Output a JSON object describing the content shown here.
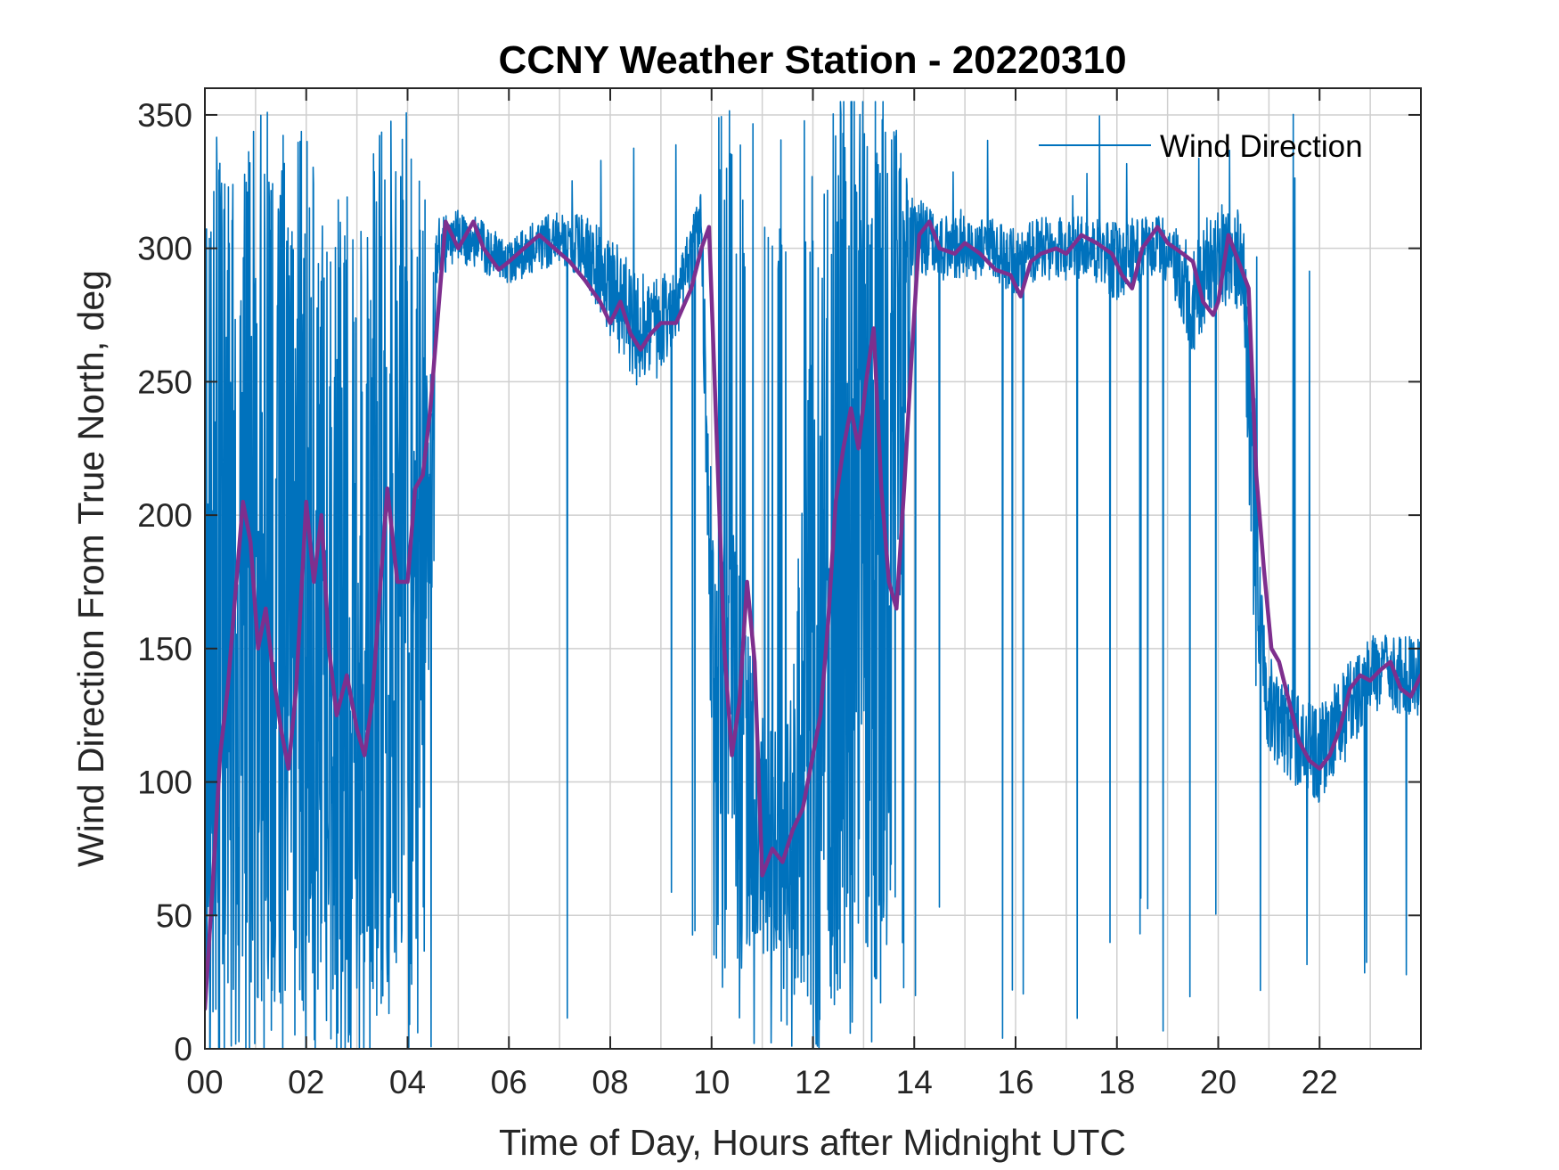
{
  "chart_data": {
    "type": "line",
    "title": "CCNY Weather Station - 20220310",
    "xlabel": "Time of Day, Hours after Midnight UTC",
    "ylabel": "Wind Direction From True North, deg",
    "xlim": [
      0,
      24
    ],
    "ylim": [
      0,
      360
    ],
    "x_ticks": [
      0,
      2,
      4,
      6,
      8,
      10,
      12,
      14,
      16,
      18,
      20,
      22
    ],
    "x_tick_labels": [
      "00",
      "02",
      "04",
      "06",
      "08",
      "10",
      "12",
      "14",
      "16",
      "18",
      "20",
      "22"
    ],
    "x_minor_grid_step": 1,
    "y_ticks": [
      0,
      50,
      100,
      150,
      200,
      250,
      300,
      350
    ],
    "y_tick_labels": [
      "0",
      "50",
      "100",
      "150",
      "200",
      "250",
      "300",
      "350"
    ],
    "grid": true,
    "legend": {
      "position": "top-right",
      "entries": [
        "Wind Direction"
      ]
    },
    "series": [
      {
        "name": "Wind Direction",
        "color": "#0072BD",
        "kind": "raw",
        "envelope_x": [
          0,
          0.5,
          1,
          1.5,
          2,
          2.5,
          3,
          3.5,
          4,
          4.5,
          4.6,
          5,
          5.5,
          6,
          6.5,
          7,
          7.5,
          8,
          8.5,
          9,
          9.5,
          9.8,
          10,
          10.5,
          11,
          11.5,
          12,
          12.5,
          13,
          13.5,
          14,
          14.5,
          15,
          15.5,
          16,
          16.5,
          17,
          17.5,
          18,
          18.5,
          19,
          19.5,
          20,
          20.5,
          20.7,
          21,
          21.5,
          22,
          22.5,
          23,
          23.5,
          24
        ],
        "envelope_center": [
          120,
          160,
          170,
          160,
          170,
          150,
          130,
          180,
          190,
          230,
          300,
          305,
          300,
          295,
          300,
          305,
          300,
          285,
          270,
          270,
          290,
          310,
          150,
          120,
          75,
          80,
          120,
          200,
          240,
          200,
          305,
          300,
          300,
          300,
          295,
          300,
          300,
          300,
          295,
          300,
          300,
          280,
          300,
          295,
          200,
          130,
          115,
          110,
          125,
          140,
          140,
          140
        ],
        "envelope_spread": [
          175,
          175,
          175,
          175,
          175,
          175,
          175,
          170,
          160,
          80,
          12,
          10,
          10,
          8,
          10,
          10,
          12,
          20,
          22,
          18,
          15,
          12,
          60,
          70,
          50,
          45,
          160,
          160,
          160,
          160,
          15,
          12,
          12,
          12,
          12,
          12,
          12,
          12,
          15,
          12,
          12,
          20,
          22,
          18,
          60,
          20,
          18,
          18,
          18,
          15,
          15,
          15
        ],
        "envelope_spike_rate": [
          0.25,
          0.25,
          0.25,
          0.25,
          0.25,
          0.25,
          0.25,
          0.2,
          0.2,
          0.1,
          0.02,
          0.02,
          0.02,
          0.02,
          0.02,
          0.02,
          0.02,
          0.03,
          0.04,
          0.03,
          0.03,
          0.03,
          0.2,
          0.2,
          0.15,
          0.15,
          0.25,
          0.25,
          0.25,
          0.25,
          0.03,
          0.02,
          0.02,
          0.02,
          0.02,
          0.02,
          0.02,
          0.02,
          0.03,
          0.02,
          0.02,
          0.04,
          0.04,
          0.04,
          0.05,
          0.02,
          0.02,
          0.02,
          0.02,
          0.02,
          0.02,
          0.02
        ]
      },
      {
        "name": "",
        "color": "#7E2F8E",
        "kind": "smoothed",
        "x": [
          0,
          0.15,
          0.3,
          0.45,
          0.6,
          0.75,
          0.9,
          1.05,
          1.2,
          1.35,
          1.5,
          1.65,
          1.8,
          2.0,
          2.15,
          2.3,
          2.45,
          2.6,
          2.8,
          3.0,
          3.15,
          3.3,
          3.45,
          3.6,
          3.8,
          4.0,
          4.15,
          4.3,
          4.45,
          4.6,
          4.75,
          5.0,
          5.3,
          5.5,
          5.8,
          6.0,
          6.3,
          6.6,
          6.9,
          7.2,
          7.5,
          7.8,
          8.0,
          8.2,
          8.4,
          8.6,
          8.8,
          9.0,
          9.3,
          9.6,
          9.8,
          9.95,
          10.1,
          10.25,
          10.4,
          10.55,
          10.7,
          10.85,
          11.0,
          11.2,
          11.4,
          11.6,
          11.8,
          12.0,
          12.15,
          12.3,
          12.45,
          12.6,
          12.75,
          12.9,
          13.05,
          13.2,
          13.35,
          13.5,
          13.65,
          13.8,
          13.95,
          14.1,
          14.3,
          14.5,
          14.8,
          15.0,
          15.3,
          15.6,
          15.9,
          16.1,
          16.3,
          16.5,
          16.8,
          17.0,
          17.3,
          17.6,
          17.9,
          18.1,
          18.3,
          18.5,
          18.8,
          19.0,
          19.3,
          19.5,
          19.7,
          19.9,
          20.0,
          20.2,
          20.4,
          20.6,
          20.75,
          20.9,
          21.05,
          21.2,
          21.4,
          21.6,
          21.8,
          22.0,
          22.2,
          22.4,
          22.6,
          22.8,
          23.0,
          23.2,
          23.4,
          23.6,
          23.8,
          24.0
        ],
        "y": [
          15,
          60,
          110,
          135,
          170,
          205,
          190,
          150,
          165,
          140,
          120,
          105,
          135,
          205,
          175,
          200,
          150,
          125,
          140,
          120,
          110,
          130,
          170,
          210,
          175,
          175,
          210,
          215,
          240,
          275,
          310,
          300,
          310,
          300,
          292,
          295,
          300,
          305,
          300,
          295,
          288,
          280,
          272,
          280,
          268,
          262,
          268,
          272,
          272,
          285,
          300,
          308,
          230,
          150,
          110,
          130,
          175,
          145,
          65,
          75,
          70,
          82,
          90,
          110,
          125,
          160,
          205,
          225,
          240,
          225,
          250,
          270,
          210,
          175,
          165,
          210,
          260,
          305,
          310,
          300,
          298,
          302,
          298,
          292,
          290,
          282,
          295,
          298,
          300,
          298,
          305,
          302,
          298,
          290,
          285,
          300,
          308,
          302,
          298,
          295,
          280,
          275,
          280,
          305,
          295,
          285,
          215,
          180,
          150,
          145,
          130,
          115,
          108,
          105,
          110,
          120,
          135,
          140,
          138,
          142,
          145,
          135,
          132,
          140
        ]
      }
    ]
  }
}
